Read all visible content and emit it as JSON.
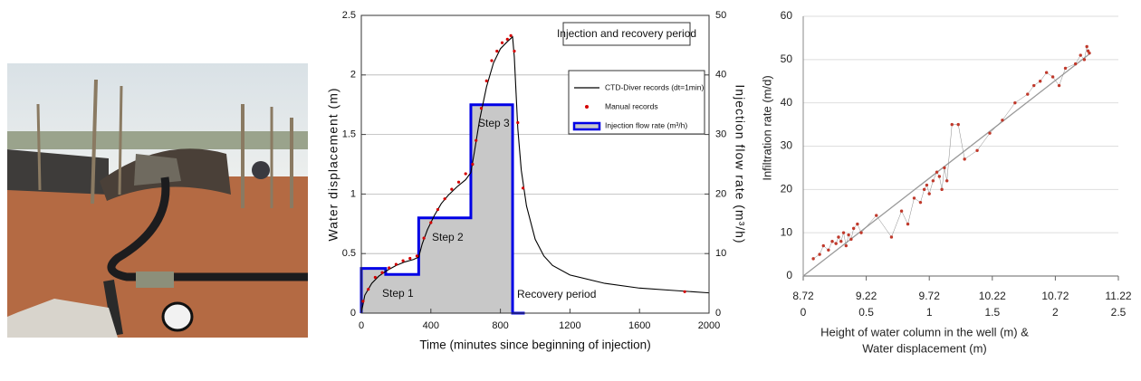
{
  "chart_data": [
    {
      "type": "line",
      "title": "Injection and recovery period",
      "xlabel": "Time (minutes since beginning of injection)",
      "ylabel": "Water displacement (m)",
      "y2label": "Injection flow rate (m³/h)",
      "xlim": [
        0,
        2000
      ],
      "xticks": [
        0,
        400,
        800,
        1200,
        1600,
        2000
      ],
      "ylim": [
        0,
        2.5
      ],
      "yticks": [
        0,
        0.5,
        1,
        1.5,
        2,
        2.5
      ],
      "y2lim": [
        0,
        50
      ],
      "y2ticks": [
        0,
        10,
        20,
        30,
        40,
        50
      ],
      "grid": true,
      "legend": "upper right",
      "annotations": [
        "Step 1",
        "Step 2",
        "Step 3",
        "Recovery period"
      ],
      "series": [
        {
          "name": "CTD-Diver records (dt=1min)",
          "color": "#000000",
          "x": [
            0,
            20,
            60,
            100,
            150,
            200,
            250,
            300,
            330,
            350,
            380,
            420,
            460,
            500,
            550,
            600,
            630,
            650,
            680,
            720,
            760,
            800,
            840,
            870,
            880,
            890,
            900,
            920,
            950,
            1000,
            1050,
            1100,
            1200,
            1400,
            1600,
            1800,
            2000
          ],
          "values": [
            0,
            0.15,
            0.25,
            0.31,
            0.36,
            0.4,
            0.43,
            0.45,
            0.47,
            0.58,
            0.7,
            0.82,
            0.92,
            0.99,
            1.06,
            1.12,
            1.18,
            1.35,
            1.62,
            1.9,
            2.1,
            2.22,
            2.28,
            2.32,
            2.15,
            1.85,
            1.55,
            1.2,
            0.9,
            0.62,
            0.48,
            0.4,
            0.32,
            0.25,
            0.21,
            0.19,
            0.17
          ]
        },
        {
          "name": "Manual records",
          "color": "#d40000",
          "marker": "dot",
          "x": [
            10,
            40,
            80,
            120,
            160,
            200,
            240,
            280,
            320,
            360,
            400,
            440,
            480,
            520,
            560,
            600,
            640,
            660,
            690,
            720,
            750,
            780,
            810,
            840,
            860,
            880,
            900,
            930,
            1860
          ],
          "values": [
            0.1,
            0.2,
            0.3,
            0.34,
            0.38,
            0.41,
            0.44,
            0.46,
            0.48,
            0.63,
            0.76,
            0.87,
            0.96,
            1.04,
            1.1,
            1.17,
            1.25,
            1.45,
            1.72,
            1.95,
            2.12,
            2.2,
            2.27,
            2.3,
            2.33,
            2.2,
            1.6,
            1.05,
            0.18
          ]
        },
        {
          "name": "Injection flow rate (m³/h)",
          "color": "#0000e6",
          "fill": "#c8c8c8",
          "axis": "y2",
          "x": [
            0,
            0,
            140,
            140,
            330,
            330,
            630,
            630,
            870,
            870,
            940
          ],
          "values": [
            0,
            7.5,
            7.5,
            6.5,
            6.5,
            16,
            16,
            35,
            35,
            0,
            0
          ]
        }
      ]
    },
    {
      "type": "scatter",
      "ylabel": "Infiltration rate (m/d)",
      "xlabel": [
        "Height of water column in the well (m) &",
        "Water displacement (m)"
      ],
      "xlim": [
        8.72,
        11.22
      ],
      "xticks": [
        8.72,
        9.22,
        9.72,
        10.22,
        10.72,
        11.22
      ],
      "x2lim": [
        0,
        2.5
      ],
      "x2ticks": [
        0,
        0.5,
        1,
        1.5,
        2,
        2.5
      ],
      "ylim": [
        0,
        60
      ],
      "yticks": [
        0,
        10,
        20,
        30,
        40,
        50,
        60
      ],
      "grid": true,
      "color": "#c0392b",
      "line_color": "#8a8a8a",
      "x": [
        8.8,
        8.85,
        8.88,
        8.92,
        8.95,
        8.98,
        9.0,
        9.02,
        9.04,
        9.06,
        9.08,
        9.1,
        9.12,
        9.15,
        9.18,
        9.3,
        9.42,
        9.5,
        9.55,
        9.6,
        9.65,
        9.68,
        9.7,
        9.72,
        9.75,
        9.78,
        9.8,
        9.82,
        9.84,
        9.86,
        9.9,
        9.95,
        10.0,
        10.1,
        10.2,
        10.3,
        10.4,
        10.5,
        10.55,
        10.6,
        10.65,
        10.7,
        10.75,
        10.8,
        10.88,
        10.92,
        10.95,
        10.97,
        10.98,
        10.99
      ],
      "values": [
        4,
        5,
        7,
        6,
        8,
        7.5,
        9,
        8,
        10,
        7,
        9.5,
        8.5,
        11,
        12,
        10,
        14,
        9,
        15,
        12,
        18,
        17,
        20,
        21,
        19,
        22,
        24,
        23,
        20,
        25,
        22,
        35,
        35,
        27,
        29,
        33,
        36,
        40,
        42,
        44,
        45,
        47,
        46,
        44,
        48,
        49,
        51,
        50,
        53,
        52,
        51.5
      ],
      "fit": {
        "x": [
          8.72,
          11.0
        ],
        "y": [
          0,
          51.5
        ]
      }
    }
  ]
}
